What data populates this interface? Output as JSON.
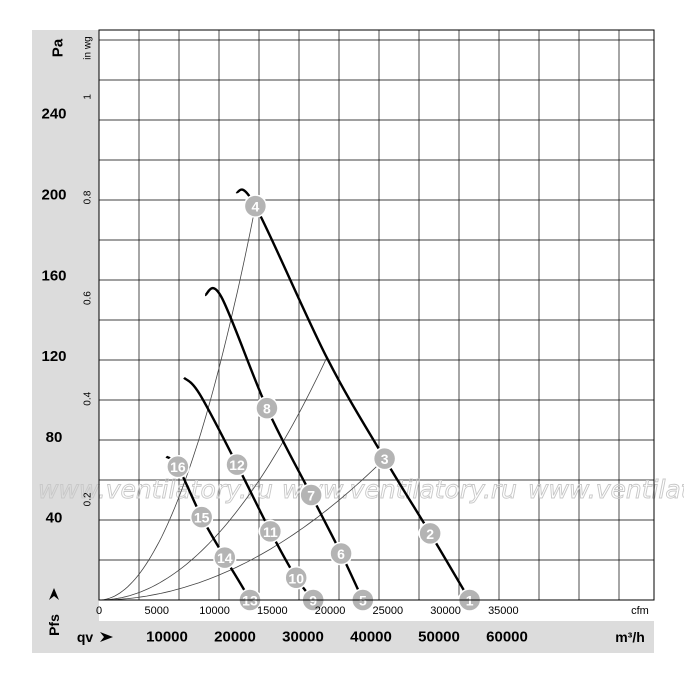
{
  "chart_data": {
    "type": "line",
    "axes": {
      "left_unit": "Pa",
      "left_ticks": [
        40,
        80,
        120,
        160,
        200,
        240
      ],
      "left_symbol": "Pfs",
      "inner_unit": "in wg",
      "inner_ticks": [
        "0.2",
        "0.4",
        "0.6",
        "0.8",
        "1"
      ],
      "x_cfm_ticks": [
        "0",
        "5000",
        "10000",
        "15000",
        "20000",
        "25000",
        "30000",
        "35000"
      ],
      "x_cfm_unit": "cfm",
      "x_m3h_ticks": [
        "10000",
        "20000",
        "30000",
        "40000",
        "50000",
        "60000"
      ],
      "x_m3h_unit": "m³/h",
      "x_symbol": "qv",
      "xlim_m3h": [
        0,
        65000
      ],
      "ylim_pa": [
        0,
        260
      ]
    },
    "grid": true,
    "watermark": "www.ventilatory.ru",
    "series": [
      {
        "role": "fan-curve",
        "points": [
          [
            20200,
            202
          ],
          [
            23000,
            195
          ],
          [
            33500,
            120
          ],
          [
            42000,
            70
          ],
          [
            48700,
            33
          ],
          [
            54500,
            0
          ]
        ]
      },
      {
        "role": "fan-curve",
        "points": [
          [
            15600,
            151
          ],
          [
            18000,
            150
          ],
          [
            24700,
            95
          ],
          [
            31200,
            52
          ],
          [
            35600,
            23
          ],
          [
            38800,
            0
          ]
        ]
      },
      {
        "role": "fan-curve",
        "points": [
          [
            12500,
            110
          ],
          [
            14800,
            102
          ],
          [
            20300,
            67
          ],
          [
            25200,
            34
          ],
          [
            29000,
            11
          ],
          [
            31500,
            0
          ]
        ]
      },
      {
        "role": "fan-curve",
        "points": [
          [
            9900,
            71
          ],
          [
            11600,
            66
          ],
          [
            15100,
            41
          ],
          [
            18500,
            21
          ],
          [
            21000,
            7
          ],
          [
            22200,
            0
          ]
        ]
      },
      {
        "role": "system-line",
        "points": [
          [
            0,
            0
          ],
          [
            11600,
            66
          ],
          [
            14800,
            102
          ],
          [
            18000,
            150
          ],
          [
            23000,
            195
          ]
        ]
      },
      {
        "role": "system-line",
        "points": [
          [
            0,
            0
          ],
          [
            15100,
            41
          ],
          [
            20300,
            67
          ],
          [
            24700,
            95
          ],
          [
            33500,
            120
          ]
        ]
      },
      {
        "role": "system-line",
        "points": [
          [
            0,
            0
          ],
          [
            18500,
            21
          ],
          [
            25200,
            34
          ],
          [
            31200,
            52
          ],
          [
            42000,
            70
          ]
        ]
      }
    ],
    "markers": [
      {
        "label": "1",
        "x": 54500,
        "y": 0
      },
      {
        "label": "2",
        "x": 48700,
        "y": 33
      },
      {
        "label": "3",
        "x": 42000,
        "y": 70
      },
      {
        "label": "4",
        "x": 23000,
        "y": 195
      },
      {
        "label": "5",
        "x": 38800,
        "y": 0
      },
      {
        "label": "6",
        "x": 35600,
        "y": 23
      },
      {
        "label": "7",
        "x": 31200,
        "y": 52
      },
      {
        "label": "8",
        "x": 24700,
        "y": 95
      },
      {
        "label": "9",
        "x": 31500,
        "y": 0
      },
      {
        "label": "10",
        "x": 29000,
        "y": 11
      },
      {
        "label": "11",
        "x": 25200,
        "y": 34
      },
      {
        "label": "12",
        "x": 20300,
        "y": 67
      },
      {
        "label": "13",
        "x": 22200,
        "y": 0
      },
      {
        "label": "14",
        "x": 18500,
        "y": 21
      },
      {
        "label": "15",
        "x": 15100,
        "y": 41
      },
      {
        "label": "16",
        "x": 11600,
        "y": 66
      }
    ]
  }
}
